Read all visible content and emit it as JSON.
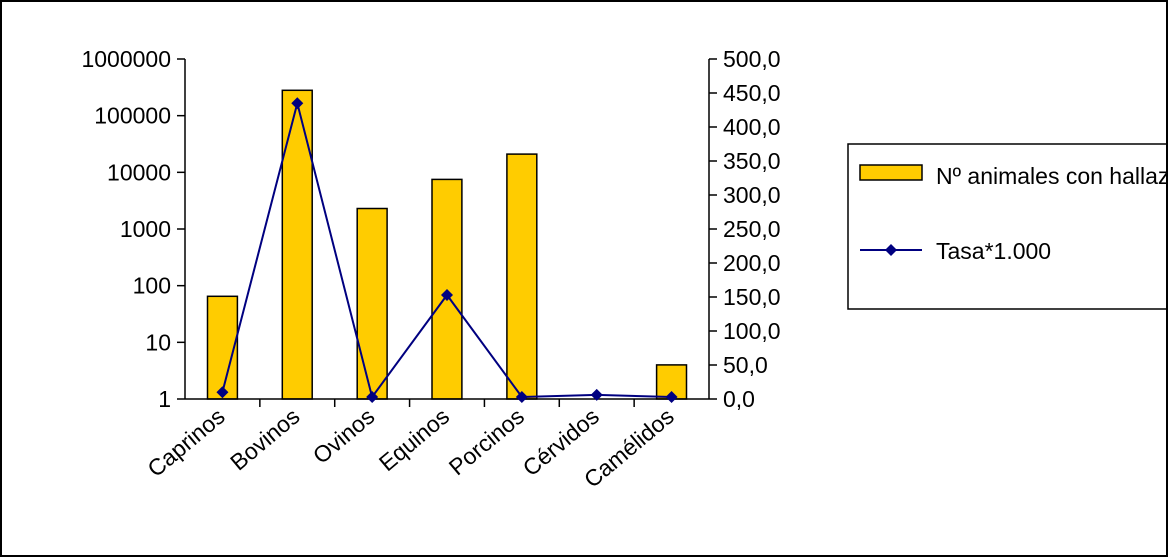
{
  "chart_data": {
    "type": "bar",
    "categories": [
      "Caprinos",
      "Bovinos",
      "Ovinos",
      "Equinos",
      "Porcinos",
      "Cérvidos",
      "Camélidos"
    ],
    "series": [
      {
        "name": "Nº animales con hallazgos",
        "type": "bar",
        "axis": "left",
        "values": [
          65,
          280000,
          2300,
          7500,
          21000,
          1,
          4
        ],
        "color": "#FFCC00"
      },
      {
        "name": "Tasa*1.000",
        "type": "line",
        "axis": "right",
        "values": [
          10,
          435,
          3,
          153,
          3,
          6,
          3
        ],
        "color": "#000080"
      }
    ],
    "y_left": {
      "scale": "log",
      "ylim": [
        1,
        1000000
      ],
      "tick_labels": [
        "1",
        "10",
        "100",
        "1000",
        "10000",
        "100000",
        "1000000"
      ]
    },
    "y_right": {
      "scale": "linear",
      "ylim": [
        0,
        500
      ],
      "tick_labels": [
        "0,0",
        "50,0",
        "100,0",
        "150,0",
        "200,0",
        "250,0",
        "300,0",
        "350,0",
        "400,0",
        "450,0",
        "500,0"
      ]
    },
    "legend": {
      "placement": "right",
      "entries": [
        "Nº animales con hallazgos",
        "Tasa*1.000"
      ]
    },
    "grid": false
  }
}
